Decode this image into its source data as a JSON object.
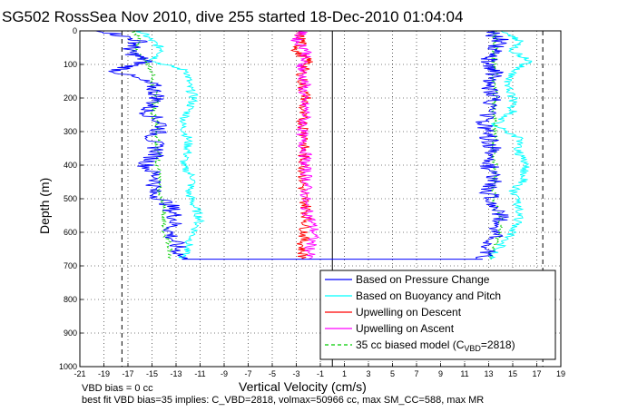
{
  "chart_data": {
    "type": "line",
    "title": "SG502 RossSea Nov 2010, dive 255 started 18-Dec-2010 01:04:04",
    "xlabel": "Vertical Velocity (cm/s)",
    "ylabel": "Depth (m)",
    "xlim": [
      -21,
      19
    ],
    "ylim": [
      0,
      1000
    ],
    "y_reversed": true,
    "grid": true,
    "xticks": [
      "-21",
      "-19",
      "-17",
      "-15",
      "-13",
      "-11",
      "-9",
      "-7",
      "-5",
      "-3",
      "-1",
      "1",
      "3",
      "5",
      "7",
      "9",
      "11",
      "13",
      "15",
      "17",
      "19"
    ],
    "yticks": [
      "0",
      "100",
      "200",
      "300",
      "400",
      "500",
      "600",
      "700",
      "800",
      "900",
      "1000"
    ],
    "legend_location": "bottom-right",
    "series": [
      {
        "name": "Based on Pressure Change",
        "color": "#0000ff",
        "descent": {
          "depth": [
            0,
            30,
            60,
            90,
            120,
            160,
            200,
            240,
            280,
            320,
            360,
            400,
            440,
            480,
            520,
            560,
            600,
            640,
            680
          ],
          "velocity": [
            -19,
            -16,
            -17,
            -15.5,
            -18,
            -15,
            -14.5,
            -15.5,
            -14,
            -15,
            -14.5,
            -15.5,
            -14.5,
            -15,
            -13.5,
            -13,
            -13.5,
            -13,
            -12.5
          ]
        },
        "ascent": {
          "depth": [
            680,
            640,
            600,
            560,
            520,
            480,
            440,
            400,
            360,
            320,
            280,
            240,
            200,
            160,
            120,
            90,
            60,
            30,
            0
          ],
          "velocity": [
            12.5,
            13,
            13.5,
            14,
            13.5,
            13,
            13.5,
            13,
            13.5,
            13,
            12.5,
            13,
            13.5,
            13,
            13.5,
            13,
            13.5,
            14,
            13
          ]
        }
      },
      {
        "name": "Based on Buoyancy and Pitch",
        "color": "#00ffff",
        "descent": {
          "depth": [
            0,
            30,
            60,
            90,
            120,
            160,
            200,
            240,
            280,
            320,
            360,
            400,
            440,
            480,
            520,
            560,
            600,
            640,
            680
          ],
          "velocity": [
            -16,
            -15,
            -14,
            -15,
            -12,
            -12,
            -11.5,
            -12,
            -12.5,
            -12,
            -12,
            -12.5,
            -11.5,
            -12,
            -11.5,
            -11,
            -11.5,
            -12,
            -12.5
          ]
        },
        "ascent": {
          "depth": [
            680,
            640,
            600,
            560,
            520,
            480,
            440,
            400,
            360,
            320,
            280,
            240,
            200,
            160,
            120,
            90,
            60,
            30,
            0
          ],
          "velocity": [
            13,
            14,
            15,
            15.5,
            15.5,
            15,
            16,
            16,
            15.5,
            15.5,
            13.5,
            15,
            15,
            14.5,
            15,
            16.5,
            15,
            15.5,
            14
          ]
        }
      },
      {
        "name": "Upwelling on Descent",
        "color": "#ff0000",
        "descent": {
          "depth": [
            0,
            30,
            60,
            90,
            120,
            160,
            200,
            240,
            280,
            320,
            360,
            400,
            440,
            480,
            520,
            560,
            600,
            640,
            680
          ],
          "velocity": [
            -3,
            -2.5,
            -3,
            -2,
            -2.5,
            -2.5,
            -2.2,
            -2.6,
            -2.4,
            -2.2,
            -2.5,
            -2.3,
            -2.4,
            -2.5,
            -2.2,
            -2.1,
            -2.3,
            -2.5,
            -2.4
          ]
        }
      },
      {
        "name": "Upwelling on Ascent",
        "color": "#ff00ff",
        "ascent": {
          "depth": [
            0,
            30,
            60,
            90,
            120,
            160,
            200,
            240,
            280,
            320,
            360,
            400,
            440,
            480,
            520,
            560,
            600,
            640,
            680
          ],
          "velocity": [
            -2.5,
            -3,
            -2,
            -2.5,
            -2.5,
            -2.3,
            -2.5,
            -2.2,
            -2.4,
            -2.6,
            -2.2,
            -2.3,
            -2.1,
            -2.2,
            -2.3,
            -1.8,
            -1.5,
            -1.8,
            -2
          ]
        }
      },
      {
        "name": "35 cc biased model (C_VBD=2818)",
        "legend_label_main": "35 cc biased model (C",
        "legend_label_sub": "VBD",
        "legend_label_tail": "=2818)",
        "color": "#00cc00",
        "dashed": true,
        "descent": {
          "depth": [
            0,
            30,
            60,
            90,
            120,
            160,
            200,
            240,
            280,
            320,
            360,
            400,
            440,
            480,
            520,
            560,
            600,
            640,
            680
          ],
          "velocity": [
            -16.5,
            -16,
            -16.5,
            -15.5,
            -15,
            -15,
            -14.5,
            -15,
            -14.5,
            -14.5,
            -14.5,
            -14.5,
            -14.5,
            -14.5,
            -14,
            -14,
            -14,
            -13.5,
            -13.5
          ]
        },
        "ascent": {
          "depth": [
            680,
            640,
            600,
            560,
            520,
            480,
            440,
            400,
            360,
            320,
            280,
            240,
            200,
            160,
            120,
            90,
            60,
            30,
            0
          ],
          "velocity": [
            13,
            13.5,
            14,
            14,
            13.5,
            13.5,
            13.5,
            13.5,
            13.5,
            13.5,
            13.5,
            13.5,
            13.5,
            13.5,
            13.5,
            13.5,
            13.5,
            13.5,
            13.5
          ]
        }
      }
    ],
    "reference_lines": [
      {
        "style": "dashed",
        "x": -17.5
      },
      {
        "style": "dashed",
        "x": 17.5
      },
      {
        "style": "solid",
        "x": 0
      }
    ],
    "annotations": [
      "VBD bias = 0 cc",
      "best fit VBD bias=35 implies: C_VBD=2818, volmax=50966 cc, max SM_CC=588, max MR"
    ]
  }
}
